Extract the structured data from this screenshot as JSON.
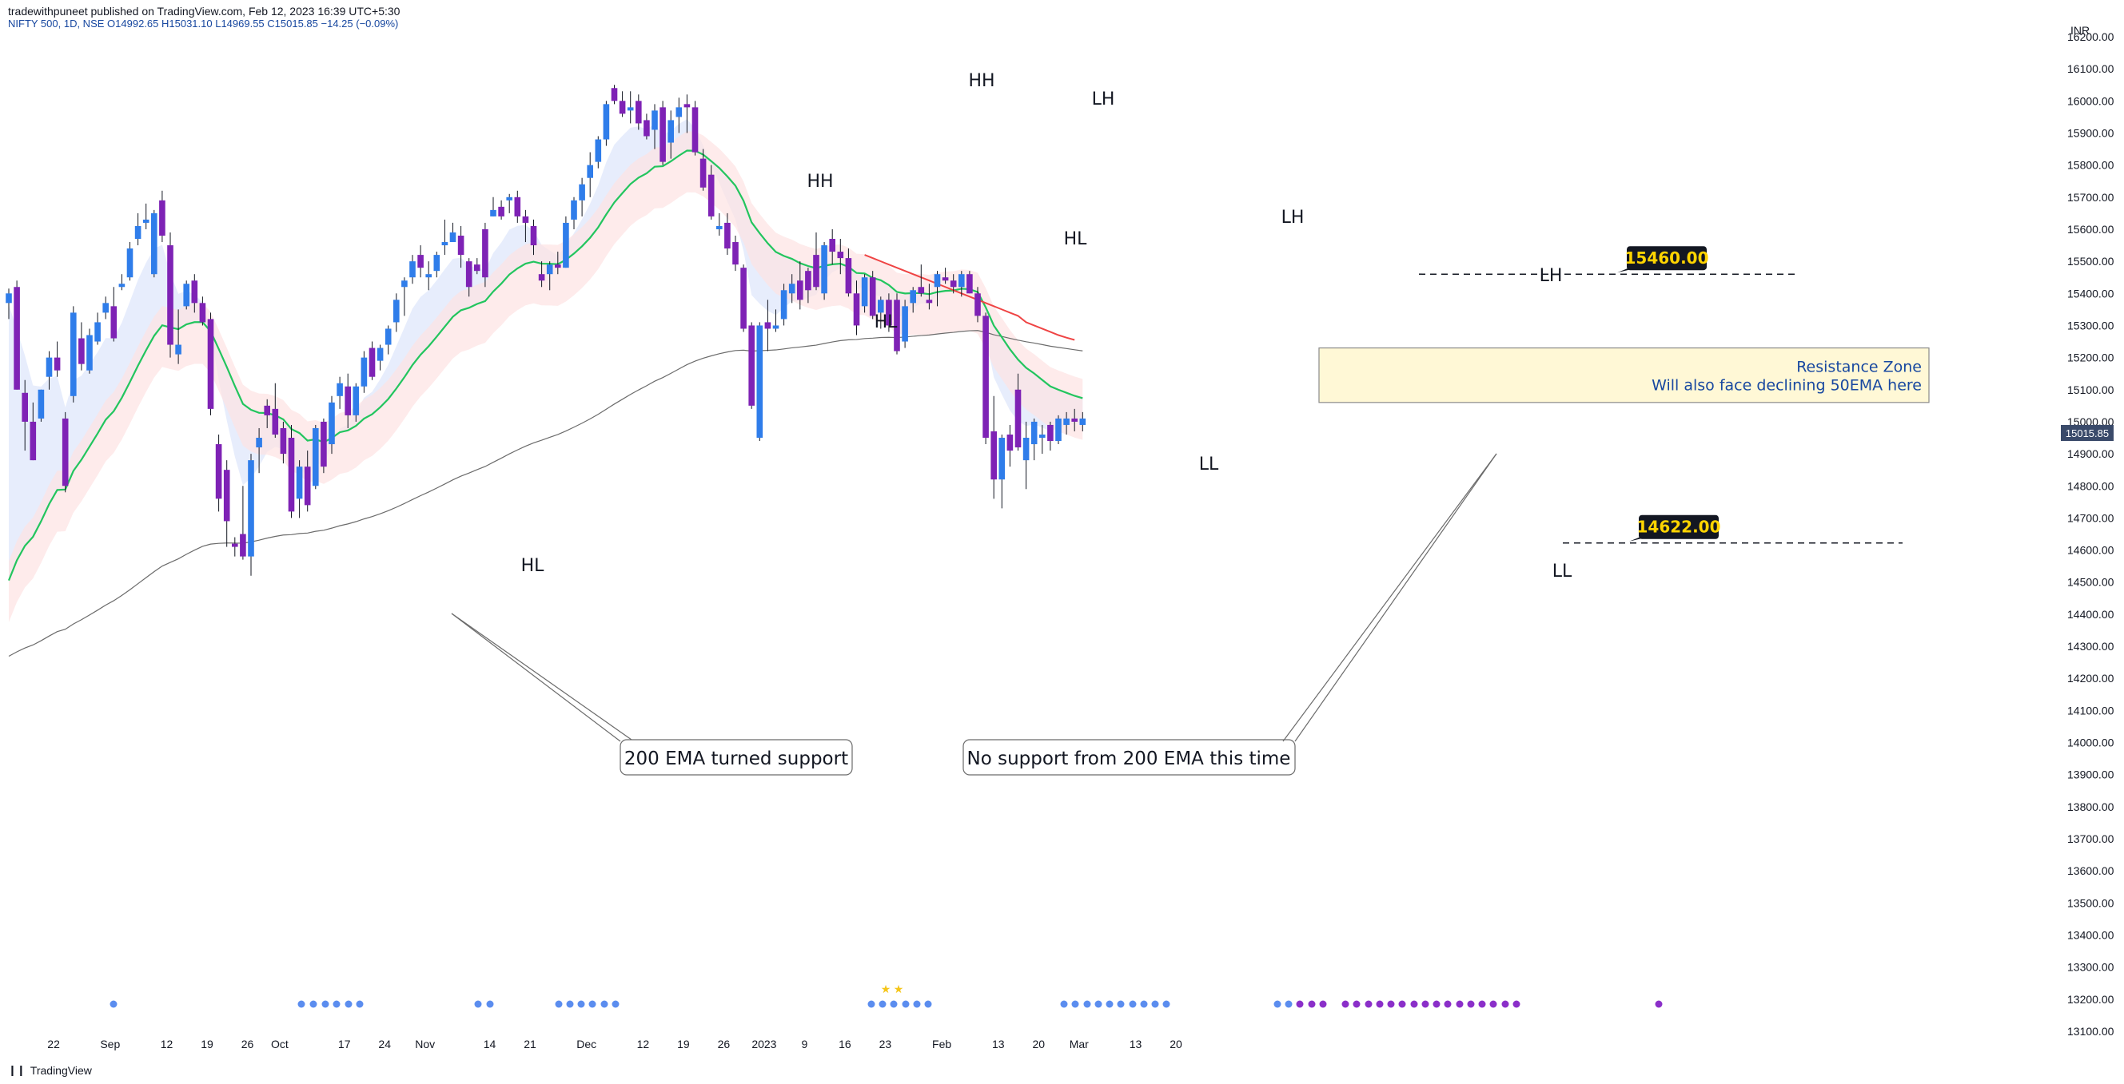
{
  "header": {
    "published": "tradewithpuneet published on TradingView.com, Feb 12, 2023 16:39 UTC+5:30",
    "symbol": "NIFTY 500, 1D, NSE",
    "ohlc": "O14992.65 H15031.10 L14969.55 C15015.85 −14.25 (−0.09%)"
  },
  "footer": {
    "logo_icon": "tradingview-logo-icon",
    "brand": "TradingView"
  },
  "colors": {
    "bull": "#2f7dea",
    "bear": "#7e22b5",
    "ema50": "#22c55e",
    "ema200": "#6b6b6b",
    "declining": "#ef4444"
  },
  "chart_data": {
    "type": "candlestick",
    "currency": "INR",
    "last_price": "15015.85",
    "ylim": [
      13100,
      16250
    ],
    "y_ticks": [
      "16200.00",
      "16100.00",
      "16000.00",
      "15900.00",
      "15800.00",
      "15700.00",
      "15600.00",
      "15500.00",
      "15400.00",
      "15300.00",
      "15200.00",
      "15100.00",
      "15000.00",
      "14900.00",
      "14800.00",
      "14700.00",
      "14600.00",
      "14500.00",
      "14400.00",
      "14300.00",
      "14200.00",
      "14100.00",
      "14000.00",
      "13900.00",
      "13800.00",
      "13700.00",
      "13600.00",
      "13500.00",
      "13400.00",
      "13300.00",
      "13200.00",
      "13100.00"
    ],
    "x_ticks": [
      {
        "label": "22",
        "i": 1
      },
      {
        "label": "Sep",
        "i": 8
      },
      {
        "label": "12",
        "i": 15
      },
      {
        "label": "19",
        "i": 20
      },
      {
        "label": "26",
        "i": 25
      },
      {
        "label": "Oct",
        "i": 29
      },
      {
        "label": "17",
        "i": 37
      },
      {
        "label": "24",
        "i": 42
      },
      {
        "label": "Nov",
        "i": 47
      },
      {
        "label": "14",
        "i": 55
      },
      {
        "label": "21",
        "i": 60
      },
      {
        "label": "Dec",
        "i": 67
      },
      {
        "label": "12",
        "i": 74
      },
      {
        "label": "19",
        "i": 79
      },
      {
        "label": "26",
        "i": 84
      },
      {
        "label": "2023",
        "i": 89
      },
      {
        "label": "9",
        "i": 94
      },
      {
        "label": "16",
        "i": 99
      },
      {
        "label": "23",
        "i": 104
      },
      {
        "label": "Feb",
        "i": 111
      },
      {
        "label": "13",
        "i": 118
      },
      {
        "label": "20",
        "i": 123
      },
      {
        "label": "Mar",
        "i": 128
      },
      {
        "label": "13",
        "i": 135
      },
      {
        "label": "20",
        "i": 140
      }
    ],
    "candles": [
      [
        15370,
        15415,
        15320,
        15400
      ],
      [
        15420,
        15440,
        15100,
        15100
      ],
      [
        15090,
        15130,
        14910,
        15000
      ],
      [
        15000,
        15060,
        14880,
        14880
      ],
      [
        15010,
        15100,
        15000,
        15100
      ],
      [
        15140,
        15220,
        15100,
        15200
      ],
      [
        15200,
        15250,
        15140,
        15160
      ],
      [
        15010,
        15030,
        14780,
        14800
      ],
      [
        15080,
        15360,
        15060,
        15340
      ],
      [
        15260,
        15310,
        15160,
        15180
      ],
      [
        15160,
        15290,
        15150,
        15270
      ],
      [
        15250,
        15340,
        15240,
        15310
      ],
      [
        15340,
        15390,
        15320,
        15370
      ],
      [
        15360,
        15420,
        15250,
        15260
      ],
      [
        15420,
        15460,
        15410,
        15430
      ],
      [
        15450,
        15560,
        15440,
        15540
      ],
      [
        15570,
        15650,
        15550,
        15610
      ],
      [
        15620,
        15680,
        15600,
        15630
      ],
      [
        15460,
        15660,
        15450,
        15650
      ],
      [
        15690,
        15720,
        15560,
        15580
      ],
      [
        15550,
        15590,
        15200,
        15240
      ],
      [
        15210,
        15350,
        15180,
        15240
      ],
      [
        15360,
        15440,
        15350,
        15430
      ],
      [
        15440,
        15460,
        15340,
        15370
      ],
      [
        15370,
        15390,
        15300,
        15310
      ],
      [
        15320,
        15340,
        15020,
        15040
      ],
      [
        14930,
        14960,
        14720,
        14760
      ],
      [
        14850,
        14880,
        14610,
        14690
      ],
      [
        14620,
        14640,
        14580,
        14610
      ],
      [
        14650,
        14800,
        14570,
        14580
      ],
      [
        14580,
        14900,
        14520,
        14880
      ],
      [
        14920,
        14980,
        14840,
        14950
      ],
      [
        15050,
        15070,
        14980,
        15020
      ],
      [
        15040,
        15120,
        14950,
        14960
      ],
      [
        14980,
        15000,
        14870,
        14900
      ],
      [
        14950,
        14990,
        14700,
        14720
      ],
      [
        14760,
        14880,
        14700,
        14860
      ],
      [
        14860,
        14910,
        14720,
        14740
      ],
      [
        14800,
        14990,
        14790,
        14980
      ],
      [
        15000,
        15010,
        14840,
        14860
      ],
      [
        14930,
        15080,
        14900,
        15060
      ],
      [
        15080,
        15140,
        15040,
        15120
      ],
      [
        15110,
        15150,
        14980,
        15020
      ],
      [
        15020,
        15120,
        15000,
        15110
      ],
      [
        15110,
        15220,
        15090,
        15200
      ],
      [
        15230,
        15250,
        15130,
        15140
      ],
      [
        15190,
        15240,
        15160,
        15230
      ],
      [
        15240,
        15300,
        15210,
        15290
      ],
      [
        15310,
        15400,
        15280,
        15380
      ],
      [
        15420,
        15450,
        15330,
        15440
      ],
      [
        15450,
        15520,
        15430,
        15500
      ],
      [
        15520,
        15550,
        15450,
        15480
      ],
      [
        15450,
        15500,
        15410,
        15460
      ],
      [
        15470,
        15530,
        15450,
        15520
      ],
      [
        15550,
        15630,
        15520,
        15560
      ],
      [
        15560,
        15620,
        15560,
        15590
      ],
      [
        15580,
        15610,
        15480,
        15520
      ],
      [
        15500,
        15510,
        15390,
        15420
      ],
      [
        15490,
        15510,
        15460,
        15470
      ],
      [
        15600,
        15620,
        15420,
        15450
      ],
      [
        15640,
        15700,
        15640,
        15660
      ],
      [
        15670,
        15690,
        15630,
        15640
      ],
      [
        15690,
        15710,
        15650,
        15700
      ],
      [
        15700,
        15720,
        15620,
        15640
      ],
      [
        15640,
        15660,
        15560,
        15620
      ],
      [
        15610,
        15630,
        15520,
        15550
      ],
      [
        15460,
        15500,
        15420,
        15440
      ],
      [
        15460,
        15500,
        15410,
        15490
      ],
      [
        15490,
        15530,
        15460,
        15480
      ],
      [
        15480,
        15640,
        15480,
        15620
      ],
      [
        15630,
        15700,
        15600,
        15690
      ],
      [
        15690,
        15760,
        15640,
        15740
      ],
      [
        15760,
        15840,
        15700,
        15800
      ],
      [
        15810,
        15890,
        15790,
        15880
      ],
      [
        15880,
        16000,
        15860,
        15990
      ],
      [
        16040,
        16050,
        15990,
        16000
      ],
      [
        16000,
        16030,
        15950,
        15960
      ],
      [
        15970,
        16030,
        15930,
        15980
      ],
      [
        16000,
        16020,
        15910,
        15930
      ],
      [
        15940,
        15960,
        15880,
        15890
      ],
      [
        15910,
        15990,
        15850,
        15970
      ],
      [
        15980,
        16000,
        15800,
        15810
      ],
      [
        15870,
        15970,
        15820,
        15940
      ],
      [
        15950,
        16010,
        15900,
        15980
      ],
      [
        15990,
        16020,
        15900,
        15980
      ],
      [
        15980,
        16000,
        15830,
        15840
      ],
      [
        15820,
        15850,
        15720,
        15730
      ],
      [
        15770,
        15800,
        15630,
        15640
      ],
      [
        15600,
        15650,
        15580,
        15610
      ],
      [
        15620,
        15650,
        15520,
        15540
      ],
      [
        15560,
        15580,
        15470,
        15490
      ],
      [
        15480,
        15490,
        15280,
        15290
      ],
      [
        15300,
        15310,
        15040,
        15050
      ],
      [
        14950,
        15310,
        14940,
        15300
      ],
      [
        15310,
        15380,
        15220,
        15290
      ],
      [
        15290,
        15350,
        15280,
        15300
      ],
      [
        15320,
        15430,
        15300,
        15410
      ],
      [
        15400,
        15460,
        15370,
        15430
      ],
      [
        15440,
        15500,
        15350,
        15380
      ],
      [
        15470,
        15480,
        15370,
        15410
      ],
      [
        15520,
        15590,
        15410,
        15420
      ],
      [
        15400,
        15560,
        15380,
        15550
      ],
      [
        15570,
        15600,
        15490,
        15530
      ],
      [
        15530,
        15570,
        15460,
        15510
      ],
      [
        15510,
        15540,
        15390,
        15400
      ],
      [
        15400,
        15440,
        15270,
        15300
      ],
      [
        15360,
        15460,
        15340,
        15450
      ],
      [
        15450,
        15470,
        15320,
        15330
      ],
      [
        15340,
        15390,
        15290,
        15380
      ],
      [
        15380,
        15400,
        15280,
        15300
      ],
      [
        15380,
        15400,
        15210,
        15220
      ],
      [
        15250,
        15380,
        15230,
        15360
      ],
      [
        15370,
        15420,
        15340,
        15410
      ],
      [
        15420,
        15490,
        15390,
        15400
      ],
      [
        15380,
        15430,
        15350,
        15370
      ],
      [
        15420,
        15470,
        15360,
        15460
      ],
      [
        15450,
        15480,
        15430,
        15440
      ],
      [
        15440,
        15460,
        15400,
        15420
      ],
      [
        15420,
        15470,
        15390,
        15460
      ],
      [
        15460,
        15470,
        15400,
        15400
      ],
      [
        15400,
        15420,
        15310,
        15330
      ],
      [
        15330,
        15340,
        14930,
        14950
      ],
      [
        14970,
        15080,
        14760,
        14820
      ],
      [
        14820,
        14960,
        14730,
        14950
      ],
      [
        14960,
        14990,
        14860,
        14910
      ],
      [
        15100,
        15150,
        14910,
        14920
      ],
      [
        14880,
        15000,
        14790,
        14950
      ],
      [
        14930,
        15010,
        14880,
        15000
      ],
      [
        14950,
        14990,
        14900,
        14960
      ],
      [
        14990,
        15000,
        14910,
        14940
      ],
      [
        14940,
        15020,
        14930,
        15010
      ],
      [
        14990,
        15030,
        14960,
        15010
      ],
      [
        15010,
        15040,
        14970,
        15000
      ],
      [
        14990,
        15030,
        14970,
        15010
      ]
    ],
    "ema50_trend": [
      15520,
      15510,
      15500,
      15490,
      15480,
      15470,
      15460,
      15450,
      15440,
      15430,
      15420,
      15410,
      15400,
      15390,
      15380,
      15370,
      15360,
      15350,
      15340,
      15330,
      15310,
      15300,
      15290,
      15280,
      15270,
      15262,
      15255
    ],
    "swing_labels": [
      {
        "text": "HH",
        "i": 0
      },
      {
        "text": "LH",
        "i": 0
      },
      {
        "text": "HH",
        "i": 0
      },
      {
        "text": "HL",
        "i": 0
      },
      {
        "text": "HL",
        "i": 0
      },
      {
        "text": "LH",
        "i": 0
      },
      {
        "text": "HL",
        "i": 0
      },
      {
        "text": "LL",
        "i": 0
      },
      {
        "text": "LH",
        "i": 0
      },
      {
        "text": "LL",
        "i": 0
      }
    ],
    "annotations": {
      "note_200_support": "200 EMA turned support",
      "note_200_no_support": "No support from 200 EMA this time",
      "resistance_title": "Resistance Zone",
      "resistance_sub": "Will also face declining 50EMA here",
      "resistance_zone": [
        15060,
        15230
      ],
      "level_high": {
        "label": "15460.00",
        "value": 15460
      },
      "level_low": {
        "label": "14622.00",
        "value": 14622
      }
    }
  }
}
